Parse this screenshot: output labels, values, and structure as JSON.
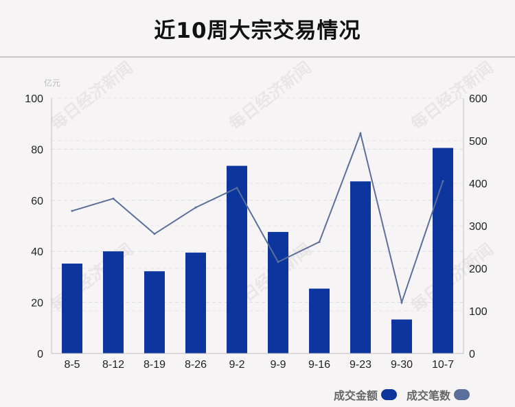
{
  "page": {
    "title": "近10周大宗交易情况",
    "watermark": "每日经济新闻"
  },
  "legend": {
    "amount_label": "成交金额",
    "count_label": "成交笔数"
  },
  "colors": {
    "bar": "#0c359e",
    "line": "#5a6f9a",
    "amount_swatch": "#0c359e",
    "count_swatch": "#5a6f9a"
  },
  "chart_data": {
    "type": "bar",
    "categories": [
      "8-5",
      "8-12",
      "8-19",
      "8-26",
      "9-2",
      "9-9",
      "9-16",
      "9-23",
      "9-30",
      "10-7"
    ],
    "left_axis_unit": "亿元",
    "series": [
      {
        "name": "成交金额",
        "type": "bar",
        "axis": "left",
        "values": [
          35.2,
          40.0,
          32.2,
          39.5,
          73.5,
          47.6,
          25.4,
          67.4,
          13.3,
          80.5
        ]
      },
      {
        "name": "成交笔数",
        "type": "line",
        "axis": "right",
        "values": [
          335,
          364,
          281,
          343,
          389,
          215,
          262,
          517,
          120,
          405
        ]
      }
    ],
    "ylim": [
      0,
      100
    ],
    "y_ticks": [
      0,
      20,
      40,
      60,
      80,
      100
    ],
    "y2lim": [
      0,
      600
    ],
    "y2_ticks": [
      0,
      100,
      200,
      300,
      400,
      500,
      600
    ],
    "grid": true
  }
}
